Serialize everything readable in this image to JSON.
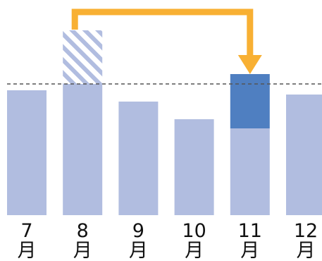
{
  "chart_data": {
    "type": "bar",
    "categories": [
      "7\n月",
      "8\n月",
      "9\n月",
      "10\n月",
      "11\n月",
      "12\n月"
    ],
    "values": [
      177,
      186,
      161,
      136,
      123,
      171
    ],
    "overflow": [
      {
        "category": "8\n月",
        "value": 76,
        "style": "hatched"
      }
    ],
    "inflow": [
      {
        "category": "11\n月",
        "value": 77,
        "style": "solid"
      }
    ],
    "reference_line": {
      "value": 186,
      "style": "dashed"
    },
    "arrow": {
      "from": "8\n月",
      "to": "11\n月"
    },
    "ylim": [
      0,
      262
    ],
    "title": "",
    "xlabel": "",
    "ylabel": "",
    "grid": false,
    "legend": "none"
  },
  "colors": {
    "base_bar": "#b1bde0",
    "highlight_bar": "#4f7fc1",
    "hatch_stripe": "#b1bde0",
    "hatch_bg": "#ffffff",
    "arrow": "#f8b033",
    "reference_line": "#555555",
    "label_text": "#111111"
  }
}
